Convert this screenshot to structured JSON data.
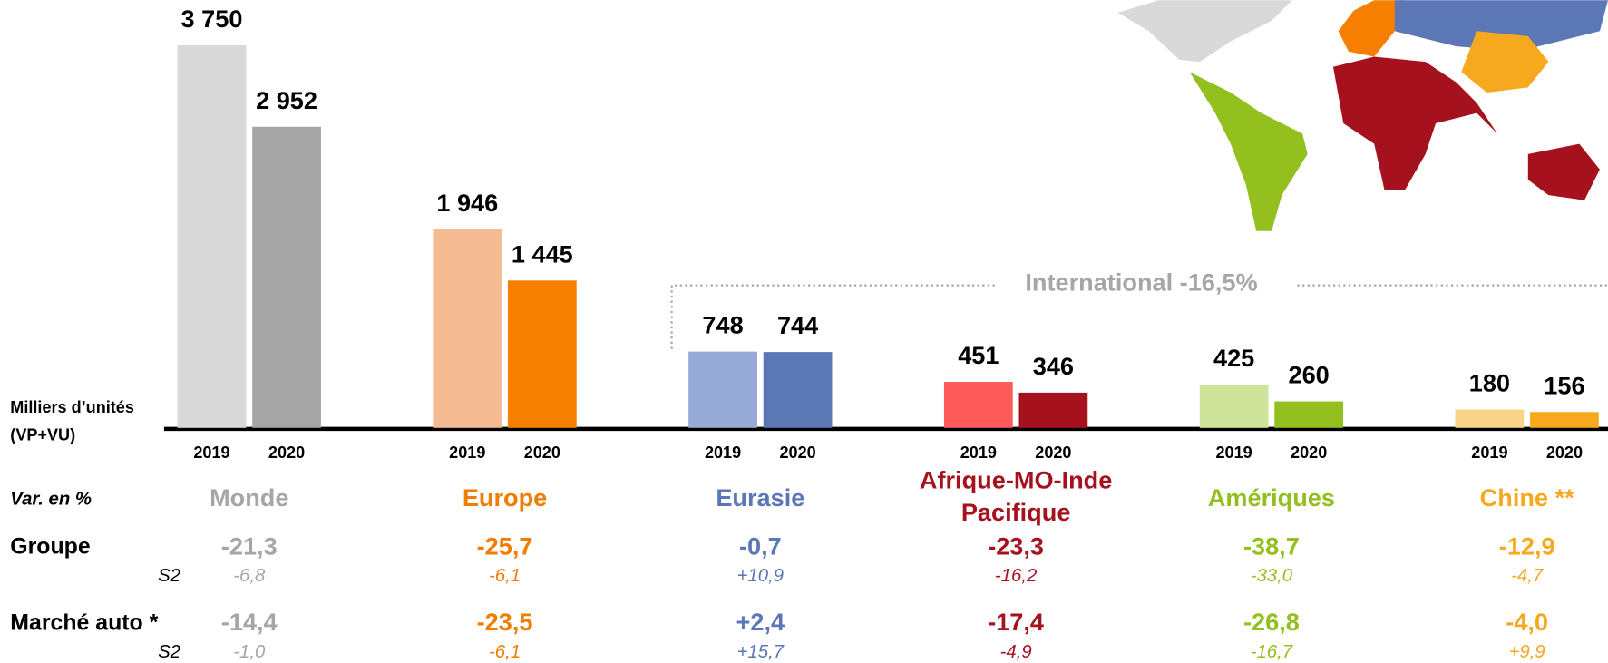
{
  "chart_data": {
    "type": "bar",
    "ylabel": [
      "Milliers d’unités",
      "(VP+VU)"
    ],
    "annotation": "International -16,5%",
    "categories": [
      "Monde",
      "Europe",
      "Eurasie",
      "Afrique-MO-Inde\nPacifique",
      "Amériques",
      "Chine **"
    ],
    "label_colors": [
      "#a6a6a6",
      "#f07d00",
      "#5b77b5",
      "#a5121e",
      "#93c01f",
      "#f6a81e"
    ],
    "ylim": [
      0,
      3750
    ],
    "series": [
      {
        "name": "2019",
        "colors": [
          "#d9d9d9",
          "#f5bc94",
          "#98aad6",
          "#ff5b5b",
          "#d0e39a",
          "#f9d58a"
        ],
        "values": [
          3750,
          1946,
          748,
          451,
          425,
          180
        ],
        "value_labels": [
          "3 750",
          "1 946",
          "748",
          "451",
          "425",
          "180"
        ]
      },
      {
        "name": "2020",
        "colors": [
          "#a6a6a6",
          "#f77f00",
          "#5b77b5",
          "#a5121e",
          "#93c01f",
          "#f6a81e"
        ],
        "values": [
          2952,
          1445,
          744,
          346,
          260,
          156
        ],
        "value_labels": [
          "2 952",
          "1 445",
          "744",
          "346",
          "260",
          "156"
        ]
      }
    ],
    "table": {
      "header": "Var. en %",
      "rows": [
        {
          "label": "Groupe",
          "values": [
            "-21,3",
            "-25,7",
            "-0,7",
            "-23,3",
            "-38,7",
            "-12,9"
          ]
        },
        {
          "label": "S2",
          "values": [
            "-6,8",
            "-6,1",
            "+10,9",
            "-16,2",
            "-33,0",
            "-4,7"
          ]
        },
        {
          "label": "Marché auto *",
          "values": [
            "-14,4",
            "-23,5",
            "+2,4",
            "-17,4",
            "-26,8",
            "-4,0"
          ]
        },
        {
          "label": "S2",
          "values": [
            "-1,0",
            "-6,1",
            "+15,7",
            "-4,9",
            "-16,7",
            "+9,9"
          ]
        }
      ]
    }
  }
}
